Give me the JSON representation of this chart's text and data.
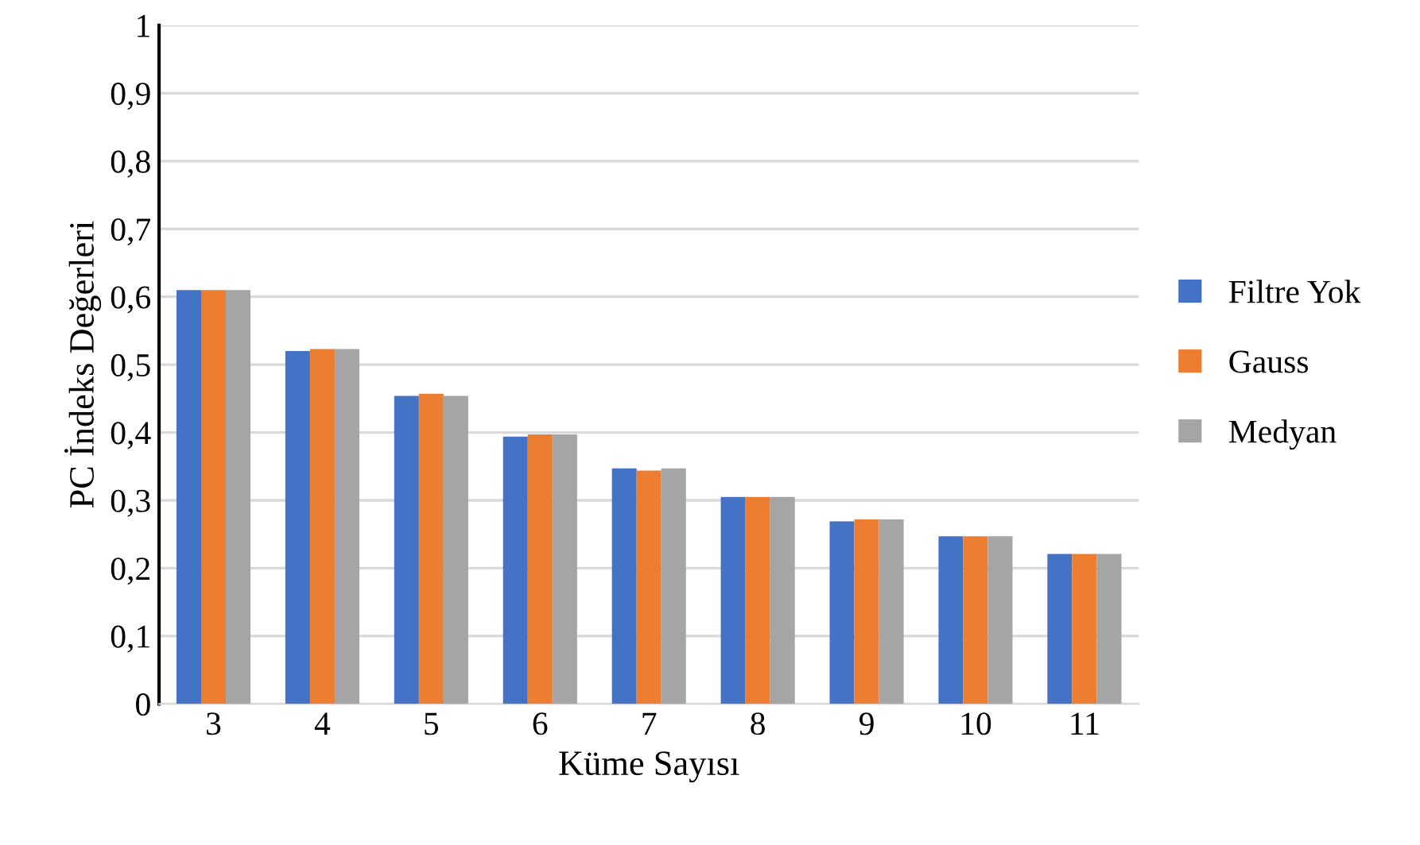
{
  "chart_data": {
    "type": "bar",
    "xlabel": "Küme Sayısı",
    "ylabel": "PC İndeks Değerleri",
    "categories": [
      "3",
      "4",
      "5",
      "6",
      "7",
      "8",
      "9",
      "10",
      "11"
    ],
    "series": [
      {
        "name": "Filtre Yok",
        "color": "#4472c4",
        "values": [
          0.61,
          0.52,
          0.454,
          0.394,
          0.347,
          0.305,
          0.269,
          0.247,
          0.221
        ]
      },
      {
        "name": "Gauss",
        "color": "#ed7d31",
        "values": [
          0.61,
          0.523,
          0.457,
          0.397,
          0.344,
          0.305,
          0.272,
          0.247,
          0.221
        ]
      },
      {
        "name": "Medyan",
        "color": "#a5a5a5",
        "values": [
          0.61,
          0.523,
          0.454,
          0.397,
          0.347,
          0.305,
          0.272,
          0.247,
          0.221
        ]
      }
    ],
    "ylim": [
      0,
      1
    ],
    "yticks": [
      0,
      {
        "value": 0.1,
        "label": "0,1"
      },
      {
        "value": 0.2,
        "label": "0,2"
      },
      {
        "value": 0.3,
        "label": "0,3"
      },
      {
        "value": 0.4,
        "label": "0,4"
      },
      {
        "value": 0.5,
        "label": "0,5"
      },
      {
        "value": 0.6,
        "label": "0,6"
      },
      {
        "value": 0.7,
        "label": "0,7"
      },
      {
        "value": 0.8,
        "label": "0,8"
      },
      {
        "value": 0.9,
        "label": "0,9"
      },
      1
    ],
    "grid": "y",
    "legend": "right"
  }
}
